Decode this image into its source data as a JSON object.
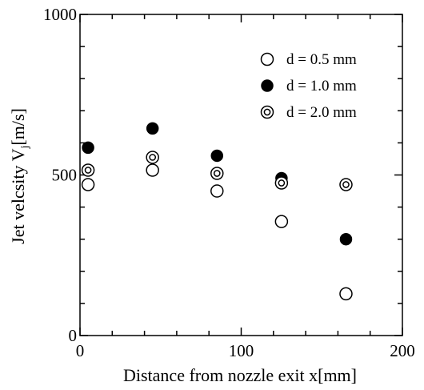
{
  "chart_data": {
    "type": "scatter",
    "title": "",
    "xlabel": "Distance from nozzle exit x[mm]",
    "ylabel_main": "Jet velcsity V",
    "ylabel_sub": "j",
    "ylabel_unit": "[m/s]",
    "xlim": [
      0,
      200
    ],
    "ylim": [
      0,
      1000
    ],
    "x_ticks": [
      0,
      100,
      200
    ],
    "y_ticks": [
      0,
      500,
      1000
    ],
    "x_tick_labels": [
      "0",
      "100",
      "200"
    ],
    "y_tick_labels": [
      "0",
      "500",
      "1000"
    ],
    "grid": false,
    "legend_position": "top-right",
    "series": [
      {
        "name": "d = 0.5 mm",
        "marker": "open-circle",
        "x": [
          5,
          45,
          85,
          125,
          165
        ],
        "y": [
          470,
          515,
          450,
          355,
          130
        ]
      },
      {
        "name": "d = 1.0 mm",
        "marker": "filled-circle",
        "x": [
          5,
          45,
          85,
          125,
          165
        ],
        "y": [
          585,
          645,
          560,
          490,
          300
        ]
      },
      {
        "name": "d = 2.0 mm",
        "marker": "double-circle",
        "x": [
          5,
          45,
          85,
          125,
          165
        ],
        "y": [
          515,
          555,
          505,
          475,
          470
        ]
      }
    ]
  }
}
